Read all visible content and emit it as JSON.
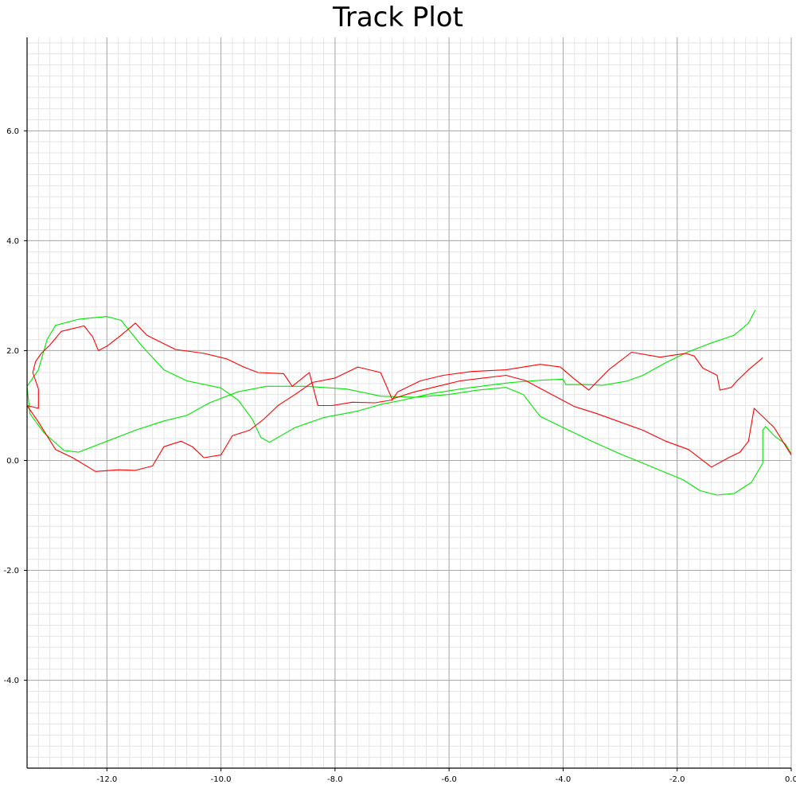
{
  "chart_data": {
    "type": "line",
    "title": "Track Plot",
    "xlabel": "",
    "ylabel": "",
    "xlim": [
      -13.4,
      0.0
    ],
    "ylim": [
      -5.6,
      7.7
    ],
    "grid": true,
    "x_ticks": [
      {
        "value": -12.0,
        "label": "-12.0"
      },
      {
        "value": -10.0,
        "label": "-10.0"
      },
      {
        "value": -8.0,
        "label": "-8.0"
      },
      {
        "value": -6.0,
        "label": "-6.0"
      },
      {
        "value": -4.0,
        "label": "-4.0"
      },
      {
        "value": -2.0,
        "label": "-2.0"
      },
      {
        "value": 0.0,
        "label": "0.0"
      }
    ],
    "y_ticks": [
      {
        "value": 6.0,
        "label": "6.0"
      },
      {
        "value": 4.0,
        "label": "4.0"
      },
      {
        "value": 2.0,
        "label": "2.0"
      },
      {
        "value": 0.0,
        "label": "0.0"
      },
      {
        "value": -2.0,
        "label": "-2.0"
      },
      {
        "value": -4.0,
        "label": "-4.0"
      }
    ],
    "series": [
      {
        "color": "#00e600",
        "points": [
          [
            -0.63,
            2.74
          ],
          [
            -0.75,
            2.5
          ],
          [
            -1.0,
            2.28
          ],
          [
            -1.4,
            2.14
          ],
          [
            -1.8,
            1.98
          ],
          [
            -2.2,
            1.78
          ],
          [
            -2.6,
            1.55
          ],
          [
            -2.9,
            1.44
          ],
          [
            -3.3,
            1.37
          ],
          [
            -3.6,
            1.38
          ],
          [
            -3.95,
            1.38
          ],
          [
            -4.0,
            1.48
          ],
          [
            -4.4,
            1.46
          ],
          [
            -4.9,
            1.42
          ],
          [
            -5.3,
            1.37
          ],
          [
            -5.8,
            1.3
          ],
          [
            -6.3,
            1.22
          ],
          [
            -6.8,
            1.1
          ],
          [
            -7.2,
            1.02
          ],
          [
            -7.6,
            0.9
          ],
          [
            -8.2,
            0.78
          ],
          [
            -8.7,
            0.6
          ],
          [
            -9.15,
            0.33
          ],
          [
            -9.3,
            0.42
          ],
          [
            -9.45,
            0.75
          ],
          [
            -9.7,
            1.1
          ],
          [
            -10.0,
            1.32
          ],
          [
            -10.6,
            1.45
          ],
          [
            -11.0,
            1.65
          ],
          [
            -11.4,
            2.1
          ],
          [
            -11.75,
            2.55
          ],
          [
            -12.0,
            2.62
          ],
          [
            -12.5,
            2.57
          ],
          [
            -12.9,
            2.46
          ],
          [
            -13.05,
            2.2
          ],
          [
            -13.2,
            1.65
          ],
          [
            -13.4,
            1.35
          ],
          [
            -13.35,
            0.85
          ],
          [
            -13.1,
            0.5
          ],
          [
            -12.75,
            0.18
          ],
          [
            -12.5,
            0.15
          ],
          [
            -12.0,
            0.35
          ],
          [
            -11.5,
            0.55
          ],
          [
            -11.0,
            0.72
          ],
          [
            -10.6,
            0.82
          ],
          [
            -10.2,
            1.05
          ],
          [
            -9.7,
            1.25
          ],
          [
            -9.2,
            1.35
          ],
          [
            -8.5,
            1.35
          ],
          [
            -7.8,
            1.3
          ],
          [
            -7.2,
            1.17
          ],
          [
            -6.6,
            1.15
          ],
          [
            -6.0,
            1.2
          ],
          [
            -5.5,
            1.28
          ],
          [
            -5.0,
            1.33
          ],
          [
            -4.7,
            1.2
          ],
          [
            -4.4,
            0.8
          ],
          [
            -4.0,
            0.6
          ],
          [
            -3.5,
            0.35
          ],
          [
            -3.0,
            0.12
          ],
          [
            -2.6,
            -0.05
          ],
          [
            -2.2,
            -0.22
          ],
          [
            -1.9,
            -0.35
          ],
          [
            -1.6,
            -0.55
          ],
          [
            -1.3,
            -0.63
          ],
          [
            -1.0,
            -0.6
          ],
          [
            -0.7,
            -0.4
          ],
          [
            -0.5,
            -0.05
          ],
          [
            -0.5,
            0.55
          ],
          [
            -0.45,
            0.62
          ],
          [
            -0.3,
            0.45
          ],
          [
            -0.1,
            0.3
          ],
          [
            0.0,
            0.12
          ]
        ]
      },
      {
        "color": "#ff0000",
        "points": [
          [
            -0.5,
            1.87
          ],
          [
            -0.75,
            1.65
          ],
          [
            -0.95,
            1.45
          ],
          [
            -1.05,
            1.33
          ],
          [
            -1.25,
            1.28
          ],
          [
            -1.3,
            1.55
          ],
          [
            -1.55,
            1.68
          ],
          [
            -1.7,
            1.9
          ],
          [
            -1.85,
            1.95
          ],
          [
            -2.3,
            1.88
          ],
          [
            -2.8,
            1.97
          ],
          [
            -3.2,
            1.65
          ],
          [
            -3.55,
            1.28
          ],
          [
            -3.8,
            1.48
          ],
          [
            -4.05,
            1.7
          ],
          [
            -4.4,
            1.75
          ],
          [
            -5.0,
            1.65
          ],
          [
            -5.6,
            1.62
          ],
          [
            -6.1,
            1.55
          ],
          [
            -6.5,
            1.45
          ],
          [
            -6.9,
            1.25
          ],
          [
            -7.0,
            1.1
          ],
          [
            -7.3,
            1.05
          ],
          [
            -7.7,
            1.06
          ],
          [
            -8.05,
            1.0
          ],
          [
            -8.3,
            1.0
          ],
          [
            -8.45,
            1.6
          ],
          [
            -8.75,
            1.35
          ],
          [
            -8.9,
            1.58
          ],
          [
            -9.35,
            1.6
          ],
          [
            -9.6,
            1.7
          ],
          [
            -9.9,
            1.85
          ],
          [
            -10.3,
            1.95
          ],
          [
            -10.8,
            2.02
          ],
          [
            -11.3,
            2.28
          ],
          [
            -11.5,
            2.5
          ],
          [
            -11.75,
            2.28
          ],
          [
            -12.0,
            2.08
          ],
          [
            -12.15,
            2.0
          ],
          [
            -12.25,
            2.25
          ],
          [
            -12.4,
            2.45
          ],
          [
            -12.8,
            2.35
          ],
          [
            -13.0,
            2.1
          ],
          [
            -13.15,
            1.95
          ],
          [
            -13.25,
            1.8
          ],
          [
            -13.3,
            1.6
          ],
          [
            -13.2,
            1.3
          ],
          [
            -13.2,
            0.95
          ],
          [
            -13.4,
            1.0
          ],
          [
            -13.2,
            0.7
          ],
          [
            -12.9,
            0.2
          ],
          [
            -12.6,
            0.05
          ],
          [
            -12.2,
            -0.2
          ],
          [
            -11.8,
            -0.17
          ],
          [
            -11.5,
            -0.18
          ],
          [
            -11.2,
            -0.1
          ],
          [
            -11.0,
            0.25
          ],
          [
            -10.7,
            0.35
          ],
          [
            -10.5,
            0.25
          ],
          [
            -10.3,
            0.05
          ],
          [
            -10.0,
            0.1
          ],
          [
            -9.8,
            0.45
          ],
          [
            -9.5,
            0.55
          ],
          [
            -9.25,
            0.75
          ],
          [
            -9.0,
            1.0
          ],
          [
            -8.7,
            1.2
          ],
          [
            -8.4,
            1.42
          ],
          [
            -8.0,
            1.5
          ],
          [
            -7.6,
            1.7
          ],
          [
            -7.2,
            1.6
          ],
          [
            -7.0,
            1.12
          ],
          [
            -6.6,
            1.25
          ],
          [
            -6.2,
            1.35
          ],
          [
            -5.8,
            1.45
          ],
          [
            -5.4,
            1.5
          ],
          [
            -5.0,
            1.55
          ],
          [
            -4.65,
            1.45
          ],
          [
            -4.2,
            1.2
          ],
          [
            -3.8,
            0.98
          ],
          [
            -3.4,
            0.85
          ],
          [
            -3.0,
            0.7
          ],
          [
            -2.6,
            0.55
          ],
          [
            -2.2,
            0.35
          ],
          [
            -1.8,
            0.2
          ],
          [
            -1.4,
            -0.12
          ],
          [
            -1.1,
            0.05
          ],
          [
            -0.9,
            0.15
          ],
          [
            -0.75,
            0.35
          ],
          [
            -0.65,
            0.95
          ],
          [
            -0.3,
            0.6
          ],
          [
            0.0,
            0.1
          ]
        ]
      }
    ]
  }
}
